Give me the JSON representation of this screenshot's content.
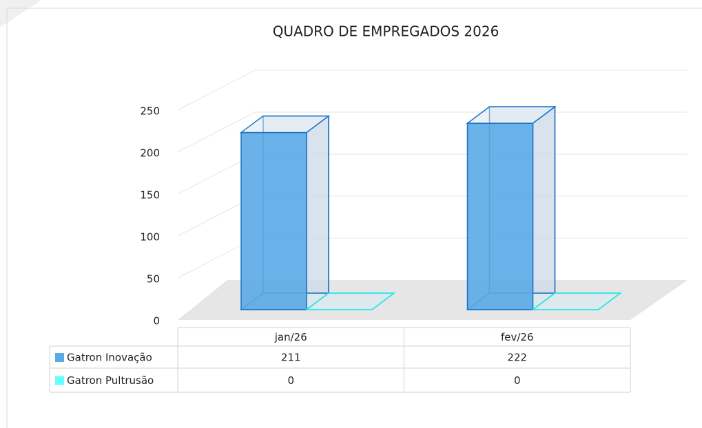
{
  "chart_data": {
    "type": "bar3d",
    "title": "QUADRO DE EMPREGADOS 2026",
    "categories": [
      "jan/26",
      "fev/26"
    ],
    "series": [
      {
        "name": "Gatron Inovação",
        "color": "#5aaae6",
        "values": [
          211,
          222
        ]
      },
      {
        "name": "Gatron Pultrusão",
        "color": "#66ffff",
        "values": [
          0,
          0
        ]
      }
    ],
    "ylim": [
      0,
      250
    ],
    "yticks": [
      0,
      50,
      100,
      150,
      200,
      250
    ],
    "grid": true,
    "data_table": true
  }
}
